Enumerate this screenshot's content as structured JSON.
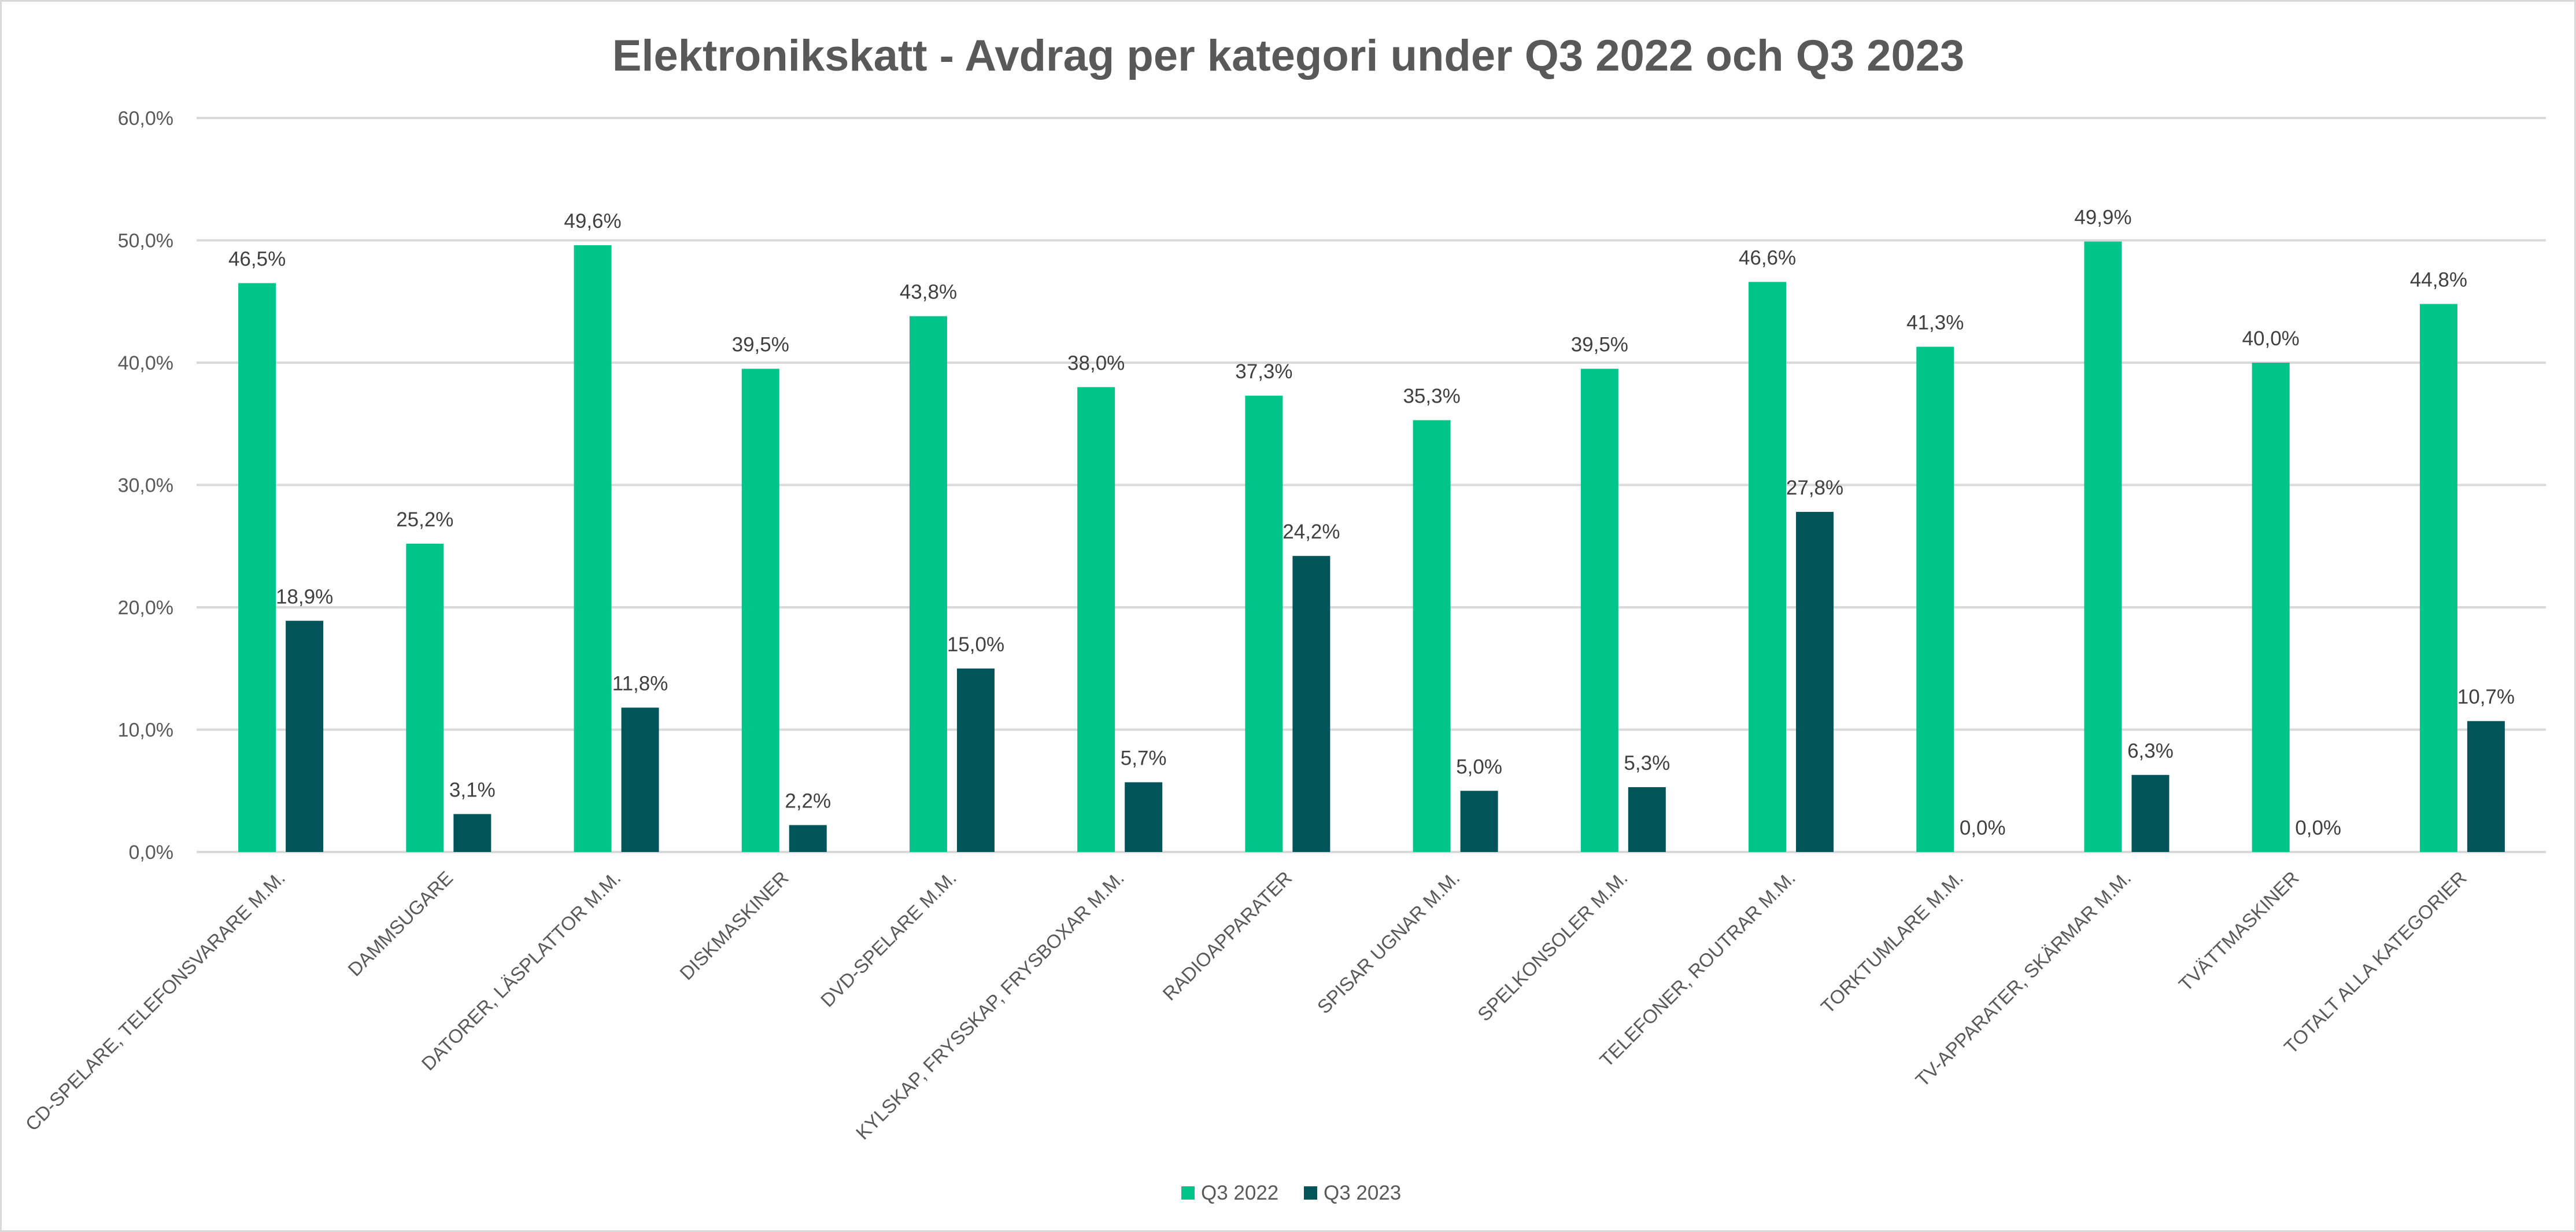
{
  "chart_data": {
    "type": "bar",
    "title": "Elektronikskatt - Avdrag per kategori under Q3 2022 och Q3 2023",
    "xlabel": "",
    "ylabel": "",
    "ylim": [
      0,
      60
    ],
    "yticks": [
      0,
      10,
      20,
      30,
      40,
      50,
      60
    ],
    "ytick_labels": [
      "0,0%",
      "10,0%",
      "20,0%",
      "30,0%",
      "40,0%",
      "50,0%",
      "60,0%"
    ],
    "grid": true,
    "legend_position": "bottom",
    "categories": [
      "CD-SPELARE, TELEFONSVARARE M.M.",
      "DAMMSUGARE",
      "DATORER, LÄSPLATTOR M.M.",
      "DISKMASKINER",
      "DVD-SPELARE M.M.",
      "KYLSKAP, FRYSSKAP, FRYSBOXAR M.M.",
      "RADIOAPPARATER",
      "SPISAR UGNAR M.M.",
      "SPELKONSOLER M.M.",
      "TELEFONER, ROUTRAR M.M.",
      "TORKTUMLARE M.M.",
      "TV-APPARATER, SKÄRMAR M.M.",
      "TVÄTTMASKINER",
      "TOTALT ALLA KATEGORIER"
    ],
    "series": [
      {
        "name": "Q3 2022",
        "color": "#00c48a",
        "values": [
          46.5,
          25.2,
          49.6,
          39.5,
          43.8,
          38.0,
          37.3,
          35.3,
          39.5,
          46.6,
          41.3,
          49.9,
          40.0,
          44.8
        ],
        "labels": [
          "46,5%",
          "25,2%",
          "49,6%",
          "39,5%",
          "43,8%",
          "38,0%",
          "37,3%",
          "35,3%",
          "39,5%",
          "46,6%",
          "41,3%",
          "49,9%",
          "40,0%",
          "44,8%"
        ]
      },
      {
        "name": "Q3 2023",
        "color": "#01555a",
        "values": [
          18.9,
          3.1,
          11.8,
          2.2,
          15.0,
          5.7,
          24.2,
          5.0,
          5.3,
          27.8,
          0.0,
          6.3,
          0.0,
          10.7
        ],
        "labels": [
          "18,9%",
          "3,1%",
          "11,8%",
          "2,2%",
          "15,0%",
          "5,7%",
          "24,2%",
          "5,0%",
          "5,3%",
          "27,8%",
          "0,0%",
          "6,3%",
          "0,0%",
          "10,7%"
        ]
      }
    ]
  }
}
